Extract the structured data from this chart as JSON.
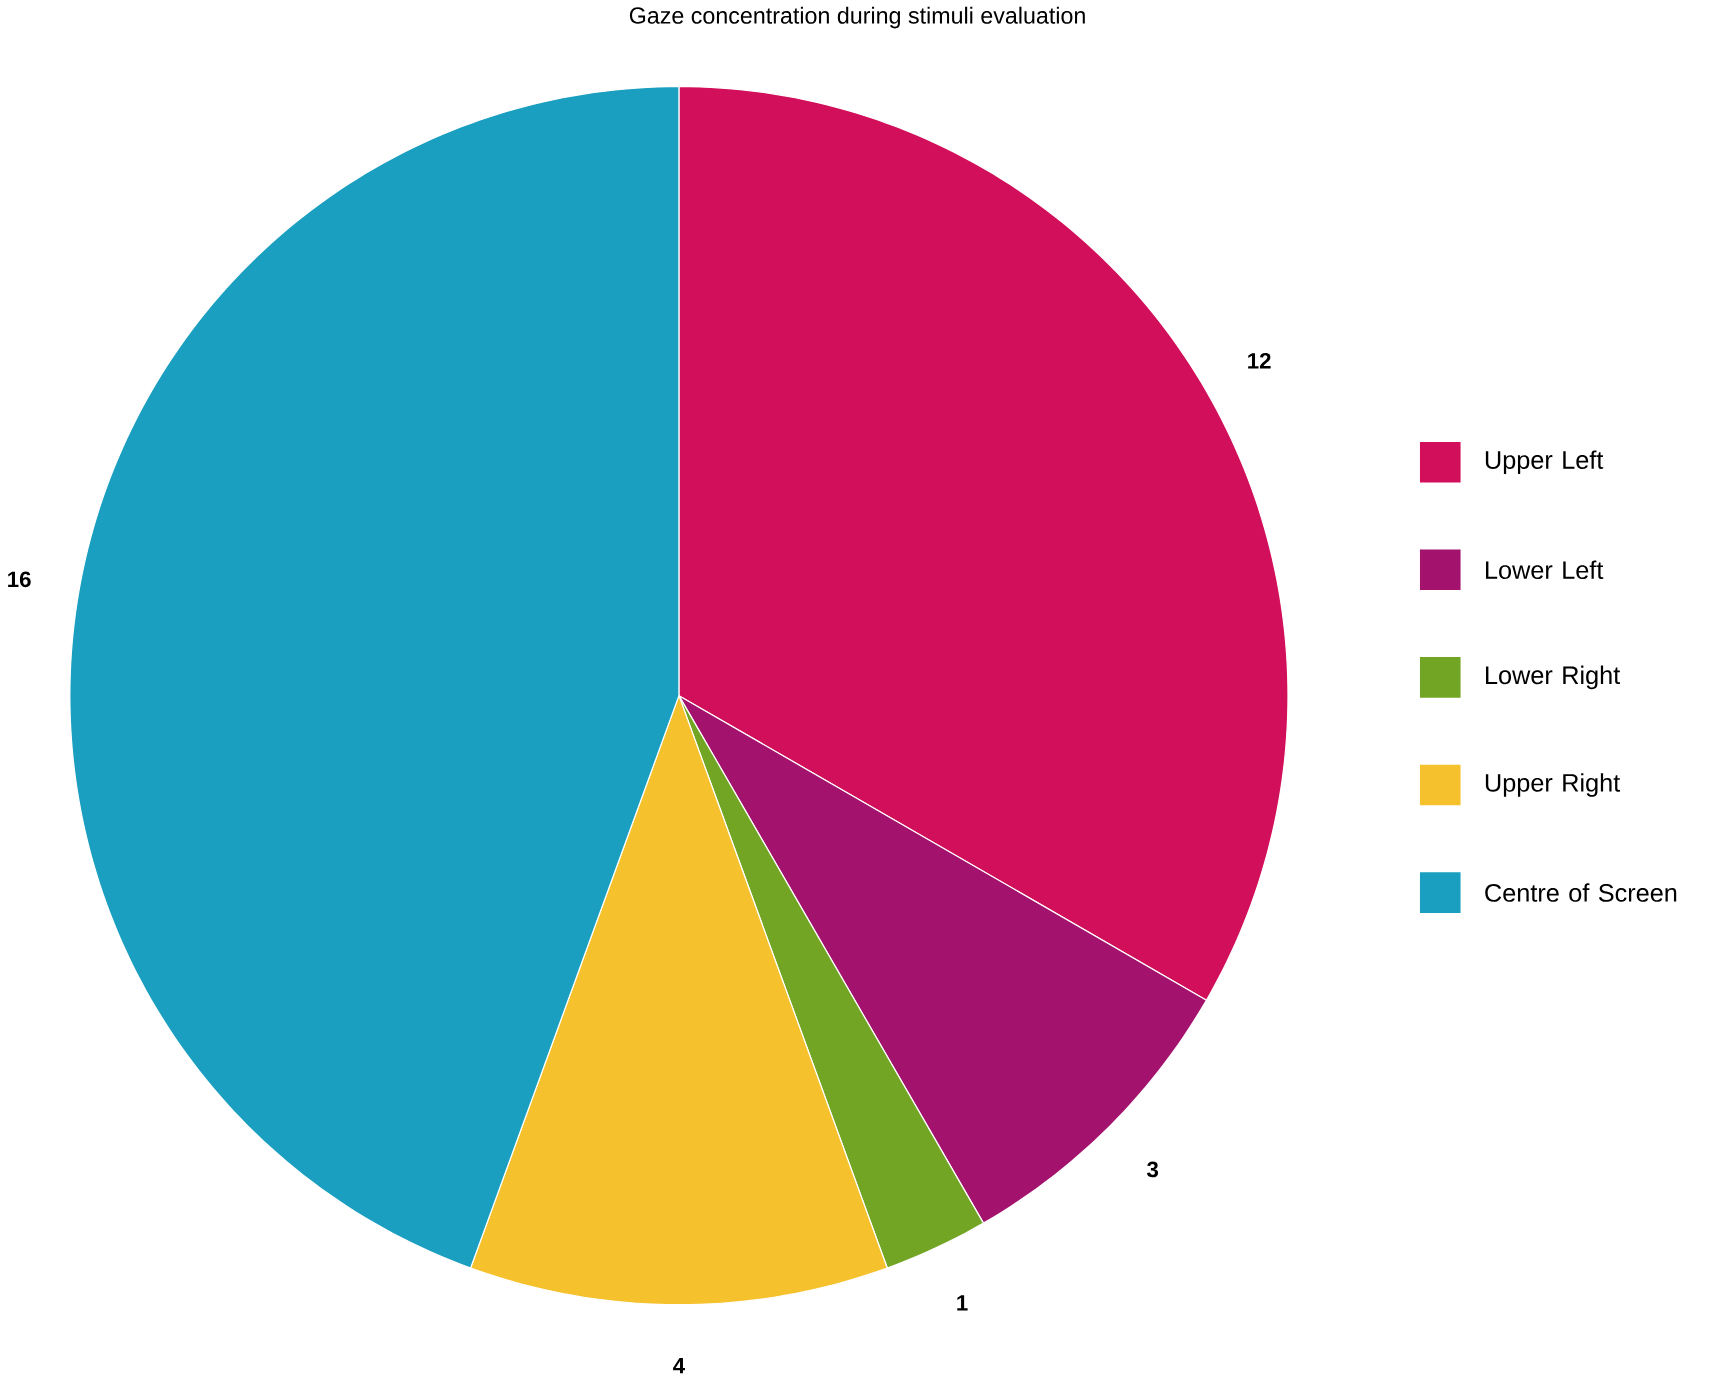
{
  "chart_data": {
    "type": "pie",
    "title": "Gaze concentration during stimuli evaluation",
    "categories": [
      "Upper Left",
      "Lower Left",
      "Lower Right",
      "Upper Right",
      "Centre of Screen"
    ],
    "values": [
      12,
      3,
      1,
      4,
      16
    ],
    "colors": [
      "#d20f5a",
      "#a3136e",
      "#72a524",
      "#f5c22e",
      "#1b9fc0"
    ],
    "data_labels": true,
    "legend": "right"
  }
}
